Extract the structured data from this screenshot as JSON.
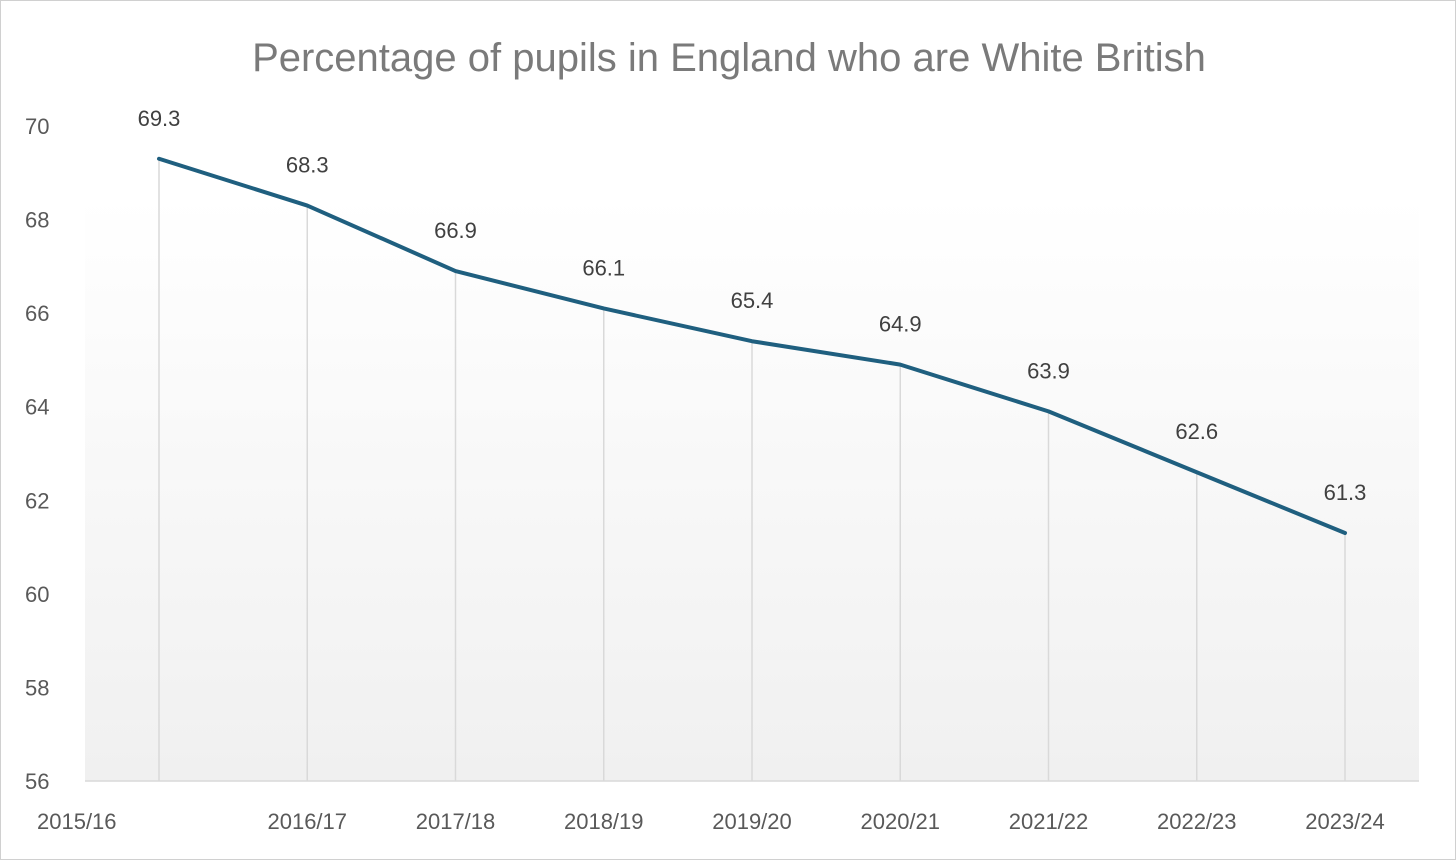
{
  "chart_data": {
    "type": "line",
    "title": "Percentage of pupils in England who are White British",
    "xlabel": "",
    "ylabel": "",
    "categories": [
      "2015/16",
      "2016/17",
      "2017/18",
      "2018/19",
      "2019/20",
      "2020/21",
      "2021/22",
      "2022/23",
      "2023/24"
    ],
    "series": [
      {
        "name": "White British (%)",
        "values": [
          69.3,
          68.3,
          66.9,
          66.1,
          65.4,
          64.9,
          63.9,
          62.6,
          61.3
        ]
      }
    ],
    "data_labels": [
      "69.3",
      "68.3",
      "66.9",
      "66.1",
      "65.4",
      "64.9",
      "63.9",
      "62.6",
      "61.3"
    ],
    "ylim": [
      56,
      70
    ],
    "y_ticks": [
      56,
      58,
      60,
      62,
      64,
      66,
      68,
      70
    ],
    "drop_lines": true,
    "grid": false,
    "legend": "none",
    "colors": {
      "line": "#1f5f7f",
      "drop_line": "#d9d9d9",
      "axis": "#d9d9d9",
      "plot_bg_top": "#ffffff",
      "plot_bg_bottom": "#f0f0f0"
    }
  }
}
